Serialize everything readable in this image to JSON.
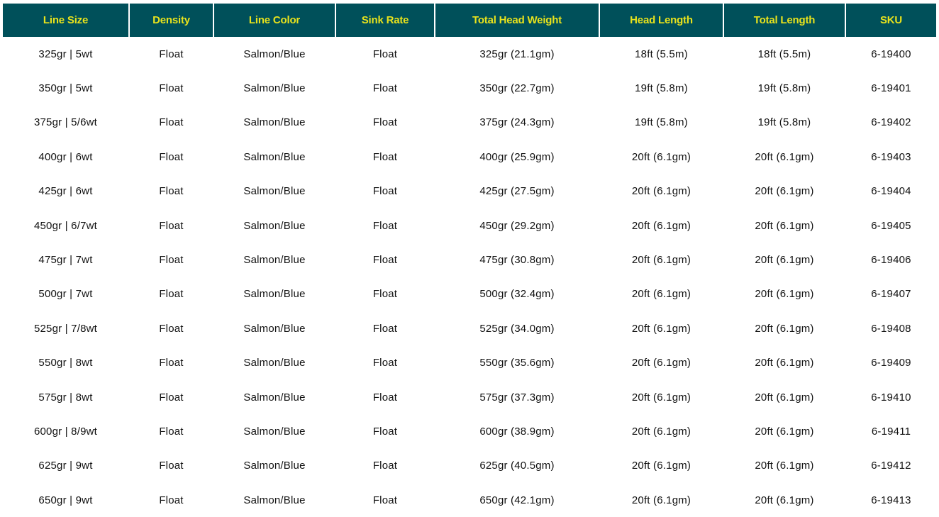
{
  "table": {
    "colors": {
      "header_bg": "#00505a",
      "header_text": "#e8e21c"
    },
    "headers": [
      "Line Size",
      "Density",
      "Line Color",
      "Sink Rate",
      "Total Head Weight",
      "Head Length",
      "Total Length",
      "SKU"
    ],
    "rows": [
      [
        "325gr | 5wt",
        "Float",
        "Salmon/Blue",
        "Float",
        "325gr (21.1gm)",
        "18ft (5.5m)",
        "18ft (5.5m)",
        "6-19400"
      ],
      [
        "350gr | 5wt",
        "Float",
        "Salmon/Blue",
        "Float",
        "350gr (22.7gm)",
        "19ft (5.8m)",
        "19ft (5.8m)",
        "6-19401"
      ],
      [
        "375gr | 5/6wt",
        "Float",
        "Salmon/Blue",
        "Float",
        "375gr (24.3gm)",
        "19ft (5.8m)",
        "19ft (5.8m)",
        "6-19402"
      ],
      [
        "400gr | 6wt",
        "Float",
        "Salmon/Blue",
        "Float",
        "400gr (25.9gm)",
        "20ft (6.1gm)",
        "20ft (6.1gm)",
        "6-19403"
      ],
      [
        "425gr | 6wt",
        "Float",
        "Salmon/Blue",
        "Float",
        "425gr (27.5gm)",
        "20ft (6.1gm)",
        "20ft (6.1gm)",
        "6-19404"
      ],
      [
        "450gr | 6/7wt",
        "Float",
        "Salmon/Blue",
        "Float",
        "450gr (29.2gm)",
        "20ft (6.1gm)",
        "20ft (6.1gm)",
        "6-19405"
      ],
      [
        "475gr | 7wt",
        "Float",
        "Salmon/Blue",
        "Float",
        "475gr (30.8gm)",
        "20ft (6.1gm)",
        "20ft (6.1gm)",
        "6-19406"
      ],
      [
        "500gr | 7wt",
        "Float",
        "Salmon/Blue",
        "Float",
        "500gr (32.4gm)",
        "20ft (6.1gm)",
        "20ft (6.1gm)",
        "6-19407"
      ],
      [
        "525gr | 7/8wt",
        "Float",
        "Salmon/Blue",
        "Float",
        "525gr (34.0gm)",
        "20ft (6.1gm)",
        "20ft (6.1gm)",
        "6-19408"
      ],
      [
        "550gr | 8wt",
        "Float",
        "Salmon/Blue",
        "Float",
        "550gr (35.6gm)",
        "20ft (6.1gm)",
        "20ft (6.1gm)",
        "6-19409"
      ],
      [
        "575gr | 8wt",
        "Float",
        "Salmon/Blue",
        "Float",
        "575gr (37.3gm)",
        "20ft (6.1gm)",
        "20ft (6.1gm)",
        "6-19410"
      ],
      [
        "600gr | 8/9wt",
        "Float",
        "Salmon/Blue",
        "Float",
        "600gr (38.9gm)",
        "20ft (6.1gm)",
        "20ft (6.1gm)",
        "6-19411"
      ],
      [
        "625gr | 9wt",
        "Float",
        "Salmon/Blue",
        "Float",
        "625gr (40.5gm)",
        "20ft (6.1gm)",
        "20ft (6.1gm)",
        "6-19412"
      ],
      [
        "650gr | 9wt",
        "Float",
        "Salmon/Blue",
        "Float",
        "650gr (42.1gm)",
        "20ft (6.1gm)",
        "20ft (6.1gm)",
        "6-19413"
      ]
    ]
  }
}
